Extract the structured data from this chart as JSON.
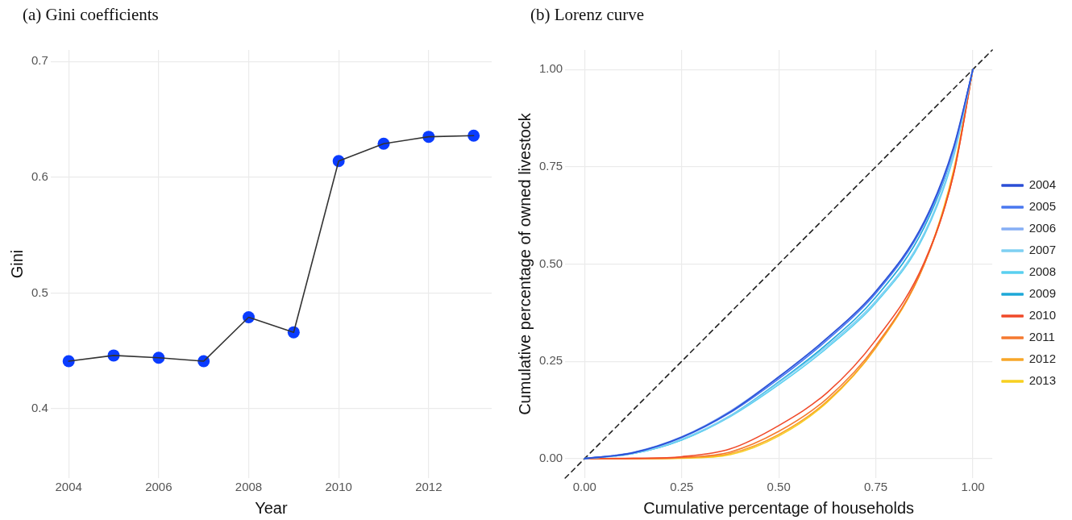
{
  "chart_data": [
    {
      "type": "line",
      "title": "(a) Gini coefficients",
      "xlabel": "Year",
      "ylabel": "Gini",
      "x": [
        2004,
        2005,
        2006,
        2007,
        2008,
        2009,
        2010,
        2011,
        2012,
        2013
      ],
      "xlim": [
        2003.6,
        2013.4
      ],
      "xticks": [
        2004,
        2006,
        2008,
        2010,
        2012
      ],
      "ylim": [
        0.34,
        0.71
      ],
      "yticks": [
        0.4,
        0.5,
        0.6,
        0.7
      ],
      "grid": true,
      "legend": false,
      "series": [
        {
          "color": "#333333",
          "marker": "none",
          "values": [
            0.441,
            0.446,
            0.444,
            0.441,
            0.479,
            0.466,
            0.614,
            0.629,
            0.635,
            0.636
          ]
        },
        {
          "type": "scatter",
          "color": "#0a3cff",
          "marker": "circle",
          "values": [
            0.441,
            0.446,
            0.444,
            0.441,
            0.479,
            0.466,
            0.614,
            0.629,
            0.635,
            0.636
          ]
        }
      ]
    },
    {
      "type": "line",
      "title": "(b) Lorenz curve",
      "xlabel": "Cumulative percentage of households",
      "ylabel": "Cumulative percentage of owned livestock",
      "x": [
        0,
        0.125,
        0.25,
        0.375,
        0.5,
        0.625,
        0.75,
        0.875,
        0.95,
        1
      ],
      "xlim": [
        -0.05,
        1.05
      ],
      "ylim": [
        -0.05,
        1.05
      ],
      "xticks": [
        {
          "value": 0,
          "label": "0.00"
        },
        {
          "value": 0.25,
          "label": "0.25"
        },
        {
          "value": 0.5,
          "label": "0.50"
        },
        {
          "value": 0.75,
          "label": "0.75"
        },
        {
          "value": 1,
          "label": "1.00"
        }
      ],
      "yticks": [
        {
          "value": 0,
          "label": "0.00"
        },
        {
          "value": 0.25,
          "label": "0.25"
        },
        {
          "value": 0.5,
          "label": "0.50"
        },
        {
          "value": 0.75,
          "label": "0.75"
        },
        {
          "value": 1,
          "label": "1.00"
        }
      ],
      "grid": true,
      "legend": "right",
      "marker": "none",
      "series": [
        {
          "name": "2004",
          "color": "#2b4fd6",
          "values": [
            0,
            0.015,
            0.055,
            0.12,
            0.21,
            0.31,
            0.43,
            0.61,
            0.8,
            1
          ]
        },
        {
          "name": "2005",
          "color": "#4a78f0",
          "values": [
            0,
            0.015,
            0.054,
            0.118,
            0.205,
            0.305,
            0.425,
            0.605,
            0.795,
            1
          ]
        },
        {
          "name": "2006",
          "color": "#86aef5",
          "values": [
            0,
            0.016,
            0.056,
            0.122,
            0.21,
            0.31,
            0.428,
            0.605,
            0.79,
            1
          ]
        },
        {
          "name": "2007",
          "color": "#7fd0f2",
          "values": [
            0,
            0.013,
            0.05,
            0.11,
            0.195,
            0.29,
            0.405,
            0.58,
            0.78,
            1
          ]
        },
        {
          "name": "2008",
          "color": "#5ad0f0",
          "values": [
            0,
            0.013,
            0.048,
            0.108,
            0.19,
            0.285,
            0.4,
            0.575,
            0.775,
            1
          ]
        },
        {
          "name": "2009",
          "color": "#1ea8d8",
          "values": [
            0,
            0.013,
            0.048,
            0.11,
            0.197,
            0.295,
            0.415,
            0.595,
            0.79,
            1
          ]
        },
        {
          "name": "2010",
          "color": "#f04a2a",
          "values": [
            0,
            0.001,
            0.005,
            0.025,
            0.085,
            0.17,
            0.305,
            0.505,
            0.73,
            1
          ]
        },
        {
          "name": "2011",
          "color": "#f57a30",
          "values": [
            0,
            0,
            0.003,
            0.017,
            0.07,
            0.155,
            0.29,
            0.5,
            0.73,
            1
          ]
        },
        {
          "name": "2012",
          "color": "#f8a628",
          "values": [
            0,
            0,
            0.002,
            0.013,
            0.062,
            0.148,
            0.285,
            0.5,
            0.735,
            1
          ]
        },
        {
          "name": "2013",
          "color": "#f8d020",
          "values": [
            0,
            0,
            0.001,
            0.01,
            0.058,
            0.145,
            0.285,
            0.5,
            0.74,
            1
          ]
        },
        {
          "color": "#222222",
          "line_style": "dashed",
          "x": [
            -0.05,
            1.05
          ],
          "values": [
            -0.05,
            1.05
          ]
        }
      ]
    }
  ]
}
